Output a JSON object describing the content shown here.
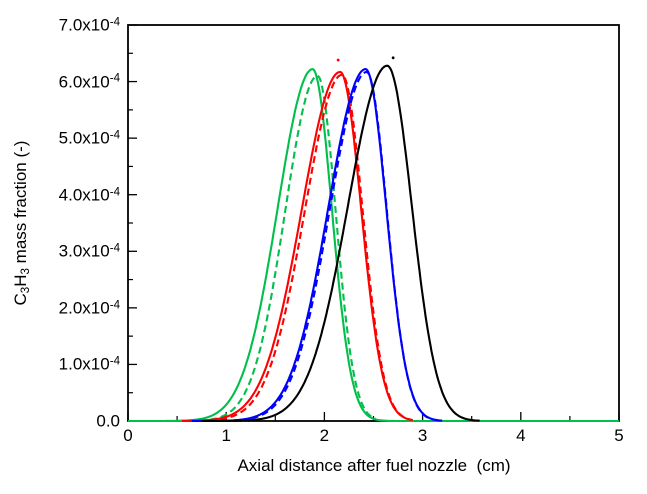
{
  "chart_data": {
    "type": "line",
    "title": "",
    "xlabel": "Axial distance after fuel nozzle  (cm)",
    "ylabel": "C_3H_3 mass fraction (-)",
    "xlim": [
      0,
      5
    ],
    "ylim": [
      0,
      0.0007
    ],
    "grid": false,
    "legend": "none",
    "axis_color": "#000000",
    "background_color": "#ffffff",
    "x_ticks": [
      {
        "v": 0,
        "label": "0"
      },
      {
        "v": 1,
        "label": "1"
      },
      {
        "v": 2,
        "label": "2"
      },
      {
        "v": 3,
        "label": "3"
      },
      {
        "v": 4,
        "label": "4"
      },
      {
        "v": 5,
        "label": "5"
      }
    ],
    "y_ticks": [
      {
        "v": 0,
        "label": "0.0"
      },
      {
        "v": 0.0001,
        "label": "1.0x10^-4"
      },
      {
        "v": 0.0002,
        "label": "2.0x10^-4"
      },
      {
        "v": 0.0003,
        "label": "3.0x10^-4"
      },
      {
        "v": 0.0004,
        "label": "4.0x10^-4"
      },
      {
        "v": 0.0005,
        "label": "5.0x10^-4"
      },
      {
        "v": 0.0006,
        "label": "6.0x10^-4"
      },
      {
        "v": 0.0007,
        "label": "7.0x10^-4"
      }
    ],
    "x_minor_step": 0.5,
    "y_minor_step": 5e-05,
    "series_model": "asymmetric-gaussian",
    "series": [
      {
        "name": "green solid",
        "color": "#00bf4a",
        "line_style": "solid",
        "peak_x": 1.88,
        "peak_y": 0.000622,
        "sigma_left": 0.355,
        "sigma_right": 0.195,
        "x_range": [
          0,
          5
        ]
      },
      {
        "name": "green dashed",
        "color": "#00bf4a",
        "line_style": "dashed",
        "peak_x": 1.93,
        "peak_y": 0.00061,
        "sigma_left": 0.33,
        "sigma_right": 0.185,
        "x_range": [
          0.5,
          2.52
        ]
      },
      {
        "name": "red solid",
        "color": "#ff0000",
        "line_style": "solid",
        "peak_x": 2.16,
        "peak_y": 0.000617,
        "sigma_left": 0.39,
        "sigma_right": 0.215,
        "x_range": [
          0.55,
          2.9
        ]
      },
      {
        "name": "red dashed",
        "color": "#ff0000",
        "line_style": "dashed",
        "peak_x": 2.18,
        "peak_y": 0.000612,
        "sigma_left": 0.38,
        "sigma_right": 0.21,
        "x_range": [
          0.6,
          2.88
        ]
      },
      {
        "name": "blue solid",
        "color": "#0000ff",
        "line_style": "solid",
        "peak_x": 2.42,
        "peak_y": 0.000622,
        "sigma_left": 0.38,
        "sigma_right": 0.21,
        "x_range": [
          0.65,
          3.2
        ]
      },
      {
        "name": "blue dashed",
        "color": "#0000ff",
        "line_style": "dashed",
        "peak_x": 2.43,
        "peak_y": 0.000617,
        "sigma_left": 0.375,
        "sigma_right": 0.205,
        "x_range": [
          0.7,
          3.18
        ]
      },
      {
        "name": "black solid",
        "color": "#000000",
        "line_style": "solid",
        "peak_x": 2.64,
        "peak_y": 0.000628,
        "sigma_left": 0.4,
        "sigma_right": 0.25,
        "x_range": [
          0.75,
          3.58
        ]
      }
    ],
    "stray_marks": [
      {
        "color": "#ff0000",
        "x": 2.14,
        "y": 0.000638
      },
      {
        "color": "#000000",
        "x": 2.7,
        "y": 0.000642
      }
    ]
  }
}
